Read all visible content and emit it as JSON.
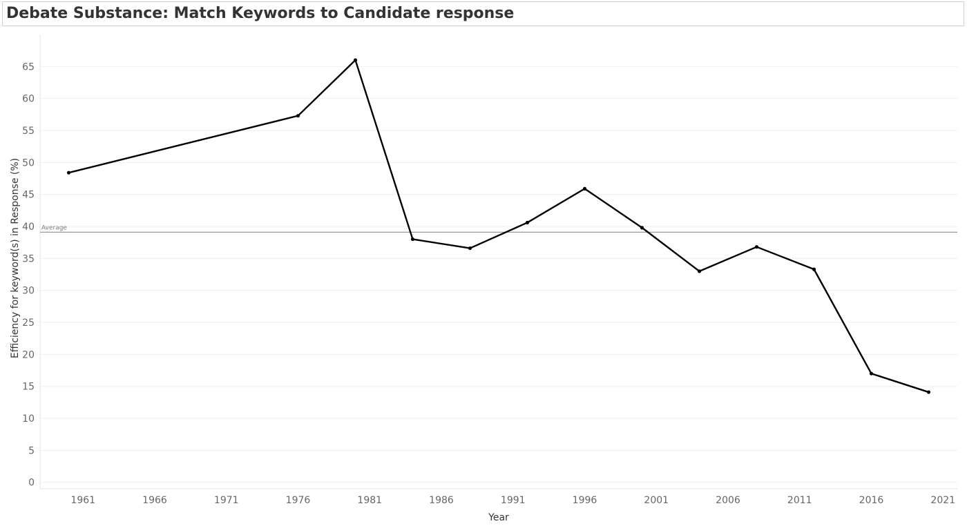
{
  "title": "Debate Substance: Match Keywords  to Candidate response",
  "chart_data": {
    "type": "line",
    "xlabel": "Year",
    "ylabel": "Efficiency for keyword(s) in Response (%)",
    "x": [
      1960,
      1976,
      1980,
      1984,
      1988,
      1992,
      1996,
      2000,
      2004,
      2008,
      2012,
      2016,
      2020
    ],
    "series": [
      {
        "values": [
          48.4,
          57.3,
          66.0,
          38.0,
          36.6,
          40.6,
          45.9,
          39.8,
          33.0,
          36.8,
          33.3,
          17.0,
          14.1
        ]
      }
    ],
    "xlim": [
      1958,
      2022
    ],
    "ylim": [
      -1,
      70
    ],
    "xticks": [
      1961,
      1966,
      1971,
      1976,
      1981,
      1986,
      1991,
      1996,
      2001,
      2006,
      2011,
      2016,
      2021
    ],
    "yticks": [
      0,
      5,
      10,
      15,
      20,
      25,
      30,
      35,
      40,
      45,
      50,
      55,
      60,
      65
    ],
    "reference_line": {
      "label": "Average",
      "value": 39.1
    },
    "grid": true,
    "line_color": "#000000"
  }
}
